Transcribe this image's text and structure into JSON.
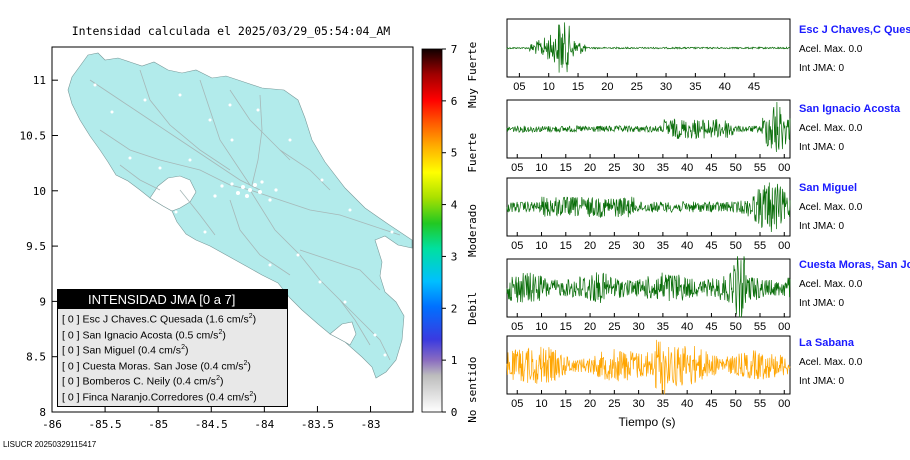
{
  "title": "Intensidad calculada el 2025/03/29_05:54:04_AM",
  "footer_id": "LISUCR 20250329115417",
  "colors": {
    "land": "#b2ebeb",
    "trace_green": "#0a6e0a",
    "trace_orange": "#ffa500",
    "station_name": "#1a1aff"
  },
  "legend": {
    "header": "INTENSIDAD JMA [0 a 7]",
    "items": [
      {
        "badge": "[ 0 ]",
        "text": "Esc J Chaves.C Quesada (1.6 cm/s",
        "sup": "2",
        "close": ")"
      },
      {
        "badge": "[ 0 ]",
        "text": "San Ignacio Acosta (0.5 cm/s",
        "sup": "2",
        "close": ")"
      },
      {
        "badge": "[ 0 ]",
        "text": "San Miguel (0.4 cm/s",
        "sup": "2",
        "close": ")"
      },
      {
        "badge": "[ 0 ]",
        "text": "Cuesta Moras. San Jose (0.4 cm/s",
        "sup": "2",
        "close": ")"
      },
      {
        "badge": "[ 0 ]",
        "text": "Bomberos C. Neily (0.4 cm/s",
        "sup": "2",
        "close": ")"
      },
      {
        "badge": "[ 0 ]",
        "text": "Finca Naranjo.Corredores (0.4 cm/s",
        "sup": "2",
        "close": ")"
      }
    ]
  },
  "chart_data": [
    {
      "type": "map",
      "xlim": [
        -86,
        -82.6
      ],
      "ylim": [
        8,
        11.3
      ],
      "x_ticks": [
        "-86",
        "-85.5",
        "-85",
        "-84.5",
        "-84",
        "-83.5",
        "-83"
      ],
      "y_ticks": [
        "8",
        "8.5",
        "9",
        "9.5",
        "10",
        "10.5",
        "11"
      ]
    },
    {
      "type": "heatmap",
      "name": "colorbar",
      "range": [
        0,
        7
      ],
      "ticks": [
        "0",
        "1",
        "2",
        "3",
        "4",
        "5",
        "6",
        "7"
      ],
      "labels": [
        "No sentido",
        "Debil",
        "Moderado",
        "Fuerte",
        "Muy Fuerte"
      ]
    },
    {
      "type": "line",
      "xlabel": "Tiempo (s)",
      "traces": [
        {
          "name": "Esc J Chaves,C Quesada",
          "accel": "Acel. Max. 0.0",
          "jma": "Int JMA: 0",
          "ticks": [
            "05",
            "10",
            "15",
            "20",
            "25",
            "30",
            "35",
            "40",
            "45"
          ],
          "color": "#0a6e0a"
        },
        {
          "name": "San Ignacio Acosta",
          "accel": "Acel. Max. 0.0",
          "jma": "Int JMA: 0",
          "ticks": [
            "05",
            "10",
            "15",
            "20",
            "25",
            "30",
            "35",
            "40",
            "45",
            "50",
            "55",
            "00"
          ],
          "color": "#0a6e0a"
        },
        {
          "name": "San Miguel",
          "accel": "Acel. Max. 0.0",
          "jma": "Int JMA: 0",
          "ticks": [
            "05",
            "10",
            "15",
            "20",
            "25",
            "30",
            "35",
            "40",
            "45",
            "50",
            "55",
            "00"
          ],
          "color": "#0a6e0a"
        },
        {
          "name": "Cuesta Moras, San Jose",
          "accel": "Acel. Max. 0.0",
          "jma": "Int JMA: 0",
          "ticks": [
            "05",
            "10",
            "15",
            "20",
            "25",
            "30",
            "35",
            "40",
            "45",
            "50",
            "55",
            "00"
          ],
          "color": "#0a6e0a"
        },
        {
          "name": "La Sabana",
          "accel": "Acel. Max. 0.0",
          "jma": "Int JMA: 0",
          "ticks": [
            "05",
            "10",
            "15",
            "20",
            "25",
            "30",
            "35",
            "40",
            "45",
            "50",
            "55",
            "00"
          ],
          "color": "#ffa500"
        }
      ]
    }
  ]
}
